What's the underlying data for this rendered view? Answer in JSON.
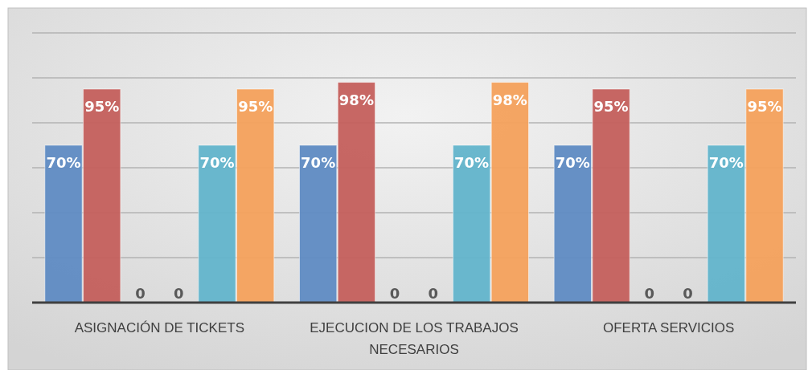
{
  "chart_data": {
    "type": "bar",
    "categories": [
      "ASIGNACIÓN DE TICKETS",
      "EJECUCION DE LOS TRABAJOS NECESARIOS",
      "OFERTA SERVICIOS"
    ],
    "series": [
      {
        "color": "#5f8bc3",
        "values": [
          70,
          70,
          70
        ],
        "value_labels": [
          "70%",
          "70%",
          "70%"
        ]
      },
      {
        "color": "#c45f5c",
        "values": [
          95,
          98,
          95
        ],
        "value_labels": [
          "95%",
          "98%",
          "95%"
        ]
      },
      {
        "color": "#9bbb59",
        "values": [
          0,
          0,
          0
        ],
        "value_labels": [
          "0",
          "0",
          "0"
        ]
      },
      {
        "color": "#8064a2",
        "values": [
          0,
          0,
          0
        ],
        "value_labels": [
          "0",
          "0",
          "0"
        ]
      },
      {
        "color": "#62b4cb",
        "values": [
          70,
          70,
          70
        ],
        "value_labels": [
          "70%",
          "70%",
          "70%"
        ]
      },
      {
        "color": "#f4a15c",
        "values": [
          95,
          98,
          95
        ],
        "value_labels": [
          "95%",
          "98%",
          "95%"
        ]
      }
    ],
    "ylim": [
      0,
      120
    ],
    "yticks": [
      {
        "value": 0,
        "label": null
      },
      {
        "value": 20,
        "label": null
      },
      {
        "value": 40,
        "label": null
      },
      {
        "value": 60,
        "label": null
      },
      {
        "value": 80,
        "label": null
      },
      {
        "value": 100,
        "label": null
      },
      {
        "value": 120,
        "label": null
      }
    ],
    "grid": "y",
    "tick_labels": "x"
  }
}
